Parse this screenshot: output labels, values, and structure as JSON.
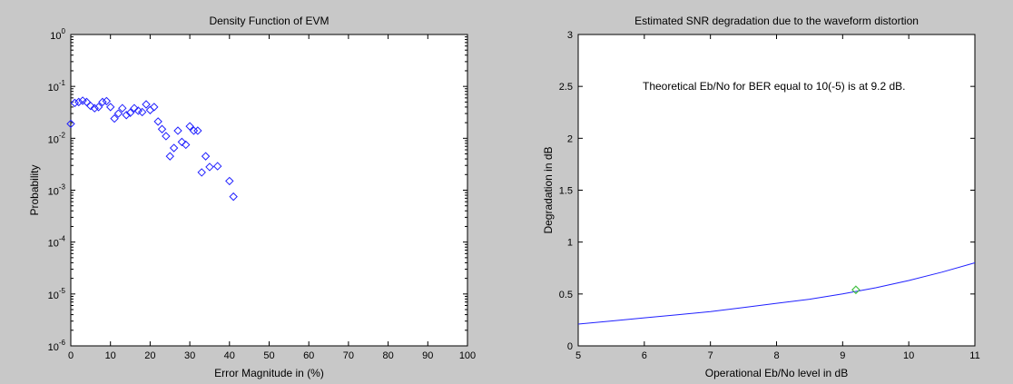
{
  "figure": {
    "background": "#c8c8c8"
  },
  "chart_data": [
    {
      "type": "scatter",
      "title": "Density Function of EVM",
      "xlabel": "Error Magnitude in (%)",
      "ylabel": "Probability",
      "xlim": [
        0,
        100
      ],
      "ylim": [
        1e-06,
        1
      ],
      "yscale": "log",
      "marker": "diamond",
      "color": "#2020ff",
      "x_ticks": [
        0,
        10,
        20,
        30,
        40,
        50,
        60,
        70,
        80,
        90,
        100
      ],
      "y_ticks": [
        {
          "value": 1e-06,
          "base": "10",
          "exp": "-6"
        },
        {
          "value": 1e-05,
          "base": "10",
          "exp": "-5"
        },
        {
          "value": 0.0001,
          "base": "10",
          "exp": "-4"
        },
        {
          "value": 0.001,
          "base": "10",
          "exp": "-3"
        },
        {
          "value": 0.01,
          "base": "10",
          "exp": "-2"
        },
        {
          "value": 0.1,
          "base": "10",
          "exp": "-1"
        },
        {
          "value": 1,
          "base": "10",
          "exp": "0"
        }
      ],
      "points": [
        {
          "x": 0,
          "y": 0.019
        },
        {
          "x": 1,
          "y": 0.048
        },
        {
          "x": 2,
          "y": 0.05
        },
        {
          "x": 3,
          "y": 0.053
        },
        {
          "x": 4,
          "y": 0.05
        },
        {
          "x": 5,
          "y": 0.042
        },
        {
          "x": 6,
          "y": 0.038
        },
        {
          "x": 7,
          "y": 0.04
        },
        {
          "x": 8,
          "y": 0.05
        },
        {
          "x": 9,
          "y": 0.052
        },
        {
          "x": 10,
          "y": 0.04
        },
        {
          "x": 11,
          "y": 0.024
        },
        {
          "x": 12,
          "y": 0.03
        },
        {
          "x": 13,
          "y": 0.038
        },
        {
          "x": 14,
          "y": 0.028
        },
        {
          "x": 15,
          "y": 0.031
        },
        {
          "x": 16,
          "y": 0.038
        },
        {
          "x": 17,
          "y": 0.034
        },
        {
          "x": 18,
          "y": 0.032
        },
        {
          "x": 19,
          "y": 0.045
        },
        {
          "x": 20,
          "y": 0.035
        },
        {
          "x": 21,
          "y": 0.04
        },
        {
          "x": 22,
          "y": 0.021
        },
        {
          "x": 23,
          "y": 0.015
        },
        {
          "x": 24,
          "y": 0.011
        },
        {
          "x": 25,
          "y": 0.0045
        },
        {
          "x": 26,
          "y": 0.0065
        },
        {
          "x": 27,
          "y": 0.014
        },
        {
          "x": 28,
          "y": 0.0085
        },
        {
          "x": 29,
          "y": 0.0075
        },
        {
          "x": 30,
          "y": 0.017
        },
        {
          "x": 31,
          "y": 0.014
        },
        {
          "x": 32,
          "y": 0.014
        },
        {
          "x": 33,
          "y": 0.0022
        },
        {
          "x": 34,
          "y": 0.0045
        },
        {
          "x": 35,
          "y": 0.0028
        },
        {
          "x": 37,
          "y": 0.0029
        },
        {
          "x": 40,
          "y": 0.0015
        },
        {
          "x": 41,
          "y": 0.00075
        }
      ]
    },
    {
      "type": "line",
      "title": "Estimated SNR degradation due to the waveform distortion",
      "xlabel": "Operational Eb/No level in dB",
      "ylabel": "Degradation in dB",
      "xlim": [
        5,
        11
      ],
      "ylim": [
        0,
        3
      ],
      "color": "#2020ff",
      "x_ticks": [
        "5",
        "6",
        "7",
        "8",
        "9",
        "10",
        "11"
      ],
      "y_ticks": [
        "0",
        "0.5",
        "1",
        "1.5",
        "2",
        "2.5",
        "3"
      ],
      "series": [
        {
          "x": [
            5,
            5.5,
            6,
            6.5,
            7,
            7.5,
            8,
            8.5,
            9,
            9.5,
            10,
            10.5,
            11
          ],
          "values": [
            0.21,
            0.24,
            0.27,
            0.3,
            0.33,
            0.37,
            0.41,
            0.45,
            0.5,
            0.56,
            0.63,
            0.71,
            0.8
          ]
        }
      ],
      "marker_point": {
        "x": 9.2,
        "y": 0.54,
        "color": "#40c040"
      },
      "annotation": "Theoretical Eb/No for BER equal to 10(-5) is at 9.2 dB."
    }
  ]
}
